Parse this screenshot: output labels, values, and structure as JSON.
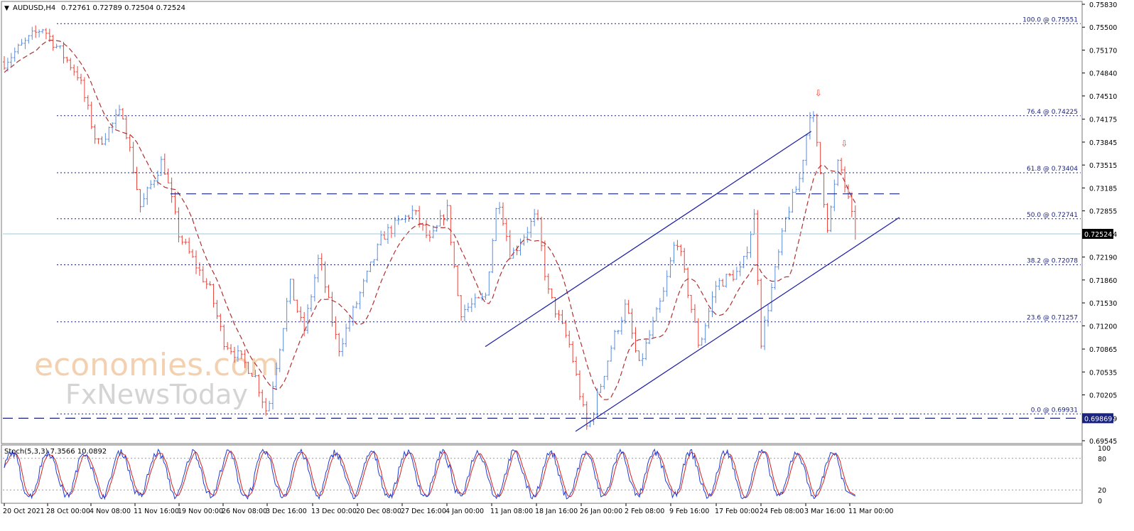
{
  "header": {
    "arrow_glyph": "▼",
    "symbol": "AUDUSD,H4",
    "ohlc": "0.72761 0.72789 0.72504 0.72524"
  },
  "indicator": {
    "label": "Stoch(5,3,3) 7.3566 10.0892",
    "levels_text": [
      "100",
      "80",
      "20",
      "0"
    ]
  },
  "watermark": {
    "line1": "economies.com",
    "line2": "FxNewsToday"
  },
  "colors": {
    "background": "#ffffff",
    "up_candle": "#5b8ddb",
    "down_candle": "#e8443a",
    "fib_lines": "#1a237e",
    "channel": "#1a1aa6",
    "moving_average": "#b03030",
    "current_price_line": "#9ecae1",
    "stoch_main": "#1f3bd4",
    "stoch_signal": "#d42020",
    "axis_text": "#000000"
  },
  "chart_data": {
    "type": "candlestick",
    "symbol": "AUDUSD",
    "timeframe": "H4",
    "y_range": [
      0.69545,
      0.7583
    ],
    "price_axis_ticks": [
      "0.75830",
      "0.75500",
      "0.75170",
      "0.74840",
      "0.74510",
      "0.74175",
      "0.73845",
      "0.73515",
      "0.73185",
      "0.72855",
      "0.72524",
      "0.72190",
      "0.71860",
      "0.71530",
      "0.71200",
      "0.70865",
      "0.70535",
      "0.70205",
      "0.69869",
      "0.69545"
    ],
    "time_axis_ticks": [
      "20 Oct 2021",
      "28 Oct 00:00",
      "4 Nov 08:00",
      "11 Nov 16:00",
      "19 Nov 00:00",
      "26 Nov 08:00",
      "3 Dec 16:00",
      "13 Dec 00:00",
      "20 Dec 08:00",
      "27 Dec 16:00",
      "4 Jan 00:00",
      "11 Jan 08:00",
      "18 Jan 16:00",
      "26 Jan 00:00",
      "2 Feb 08:00",
      "9 Feb 16:00",
      "17 Feb 00:00",
      "24 Feb 08:00",
      "3 Mar 16:00",
      "11 Mar 00:00"
    ],
    "current_price": 0.72524,
    "highlighted_level": 0.69869,
    "fibonacci_levels": [
      {
        "label": "100.0 @ 0.75551",
        "price": 0.75551
      },
      {
        "label": "76.4 @ 0.74225",
        "price": 0.74225
      },
      {
        "label": "61.8 @ 0.73404",
        "price": 0.73404
      },
      {
        "label": "50.0 @ 0.72741",
        "price": 0.72741
      },
      {
        "label": "38.2 @ 0.72078",
        "price": 0.72078
      },
      {
        "label": "23.6 @ 0.71257",
        "price": 0.71257
      },
      {
        "label": "0.0 @ 0.69931",
        "price": 0.69931
      }
    ],
    "horizontal_dashed_levels": [
      0.731,
      0.69869
    ],
    "ascending_channel": {
      "upper": {
        "from": [
          "10 Jan",
          0.709
        ],
        "to": [
          "4 Mar",
          0.74
        ]
      },
      "lower": {
        "from": [
          "25 Jan",
          0.6968
        ],
        "to": [
          "20 Mar",
          0.7276
        ]
      }
    },
    "anchor_points": [
      {
        "t": "20 Oct",
        "p": 0.75
      },
      {
        "t": "27 Oct",
        "p": 0.755
      },
      {
        "t": "2 Nov",
        "p": 0.748
      },
      {
        "t": "5 Nov",
        "p": 0.738
      },
      {
        "t": "9 Nov",
        "p": 0.743
      },
      {
        "t": "12 Nov",
        "p": 0.729
      },
      {
        "t": "16 Nov",
        "p": 0.736
      },
      {
        "t": "19 Nov",
        "p": 0.725
      },
      {
        "t": "24 Nov",
        "p": 0.717
      },
      {
        "t": "26 Nov",
        "p": 0.71
      },
      {
        "t": "1 Dec",
        "p": 0.705
      },
      {
        "t": "3 Dec",
        "p": 0.6993
      },
      {
        "t": "6 Dec",
        "p": 0.71
      },
      {
        "t": "8 Dec",
        "p": 0.718
      },
      {
        "t": "11 Dec",
        "p": 0.711
      },
      {
        "t": "14 Dec",
        "p": 0.722
      },
      {
        "t": "17 Dec",
        "p": 0.7085
      },
      {
        "t": "21 Dec",
        "p": 0.718
      },
      {
        "t": "24 Dec",
        "p": 0.725
      },
      {
        "t": "29 Dec",
        "p": 0.7285
      },
      {
        "t": "1 Jan",
        "p": 0.724
      },
      {
        "t": "4 Jan",
        "p": 0.729
      },
      {
        "t": "6 Jan",
        "p": 0.714
      },
      {
        "t": "10 Jan",
        "p": 0.716
      },
      {
        "t": "12 Jan",
        "p": 0.731
      },
      {
        "t": "14 Jan",
        "p": 0.722
      },
      {
        "t": "18 Jan",
        "p": 0.728
      },
      {
        "t": "20 Jan",
        "p": 0.717
      },
      {
        "t": "24 Jan",
        "p": 0.709
      },
      {
        "t": "27 Jan",
        "p": 0.6968
      },
      {
        "t": "31 Jan",
        "p": 0.71
      },
      {
        "t": "2 Feb",
        "p": 0.715
      },
      {
        "t": "4 Feb",
        "p": 0.706
      },
      {
        "t": "8 Feb",
        "p": 0.717
      },
      {
        "t": "10 Feb",
        "p": 0.725
      },
      {
        "t": "14 Feb",
        "p": 0.709
      },
      {
        "t": "17 Feb",
        "p": 0.718
      },
      {
        "t": "21 Feb",
        "p": 0.72
      },
      {
        "t": "23 Feb",
        "p": 0.728
      },
      {
        "t": "24 Feb",
        "p": 0.7097
      },
      {
        "t": "28 Feb",
        "p": 0.728
      },
      {
        "t": "2 Mar",
        "p": 0.733
      },
      {
        "t": "4 Mar",
        "p": 0.744
      },
      {
        "t": "7 Mar",
        "p": 0.726
      },
      {
        "t": "9 Mar",
        "p": 0.736
      },
      {
        "t": "11 Mar",
        "p": 0.729
      },
      {
        "t": "12 Mar",
        "p": 0.72524
      }
    ],
    "stochastic": {
      "k_period": 5,
      "d_period": 3,
      "slowing": 3,
      "main_value": 7.3566,
      "signal_value": 10.0892,
      "levels": [
        20,
        80
      ],
      "range": [
        0,
        100
      ]
    }
  }
}
